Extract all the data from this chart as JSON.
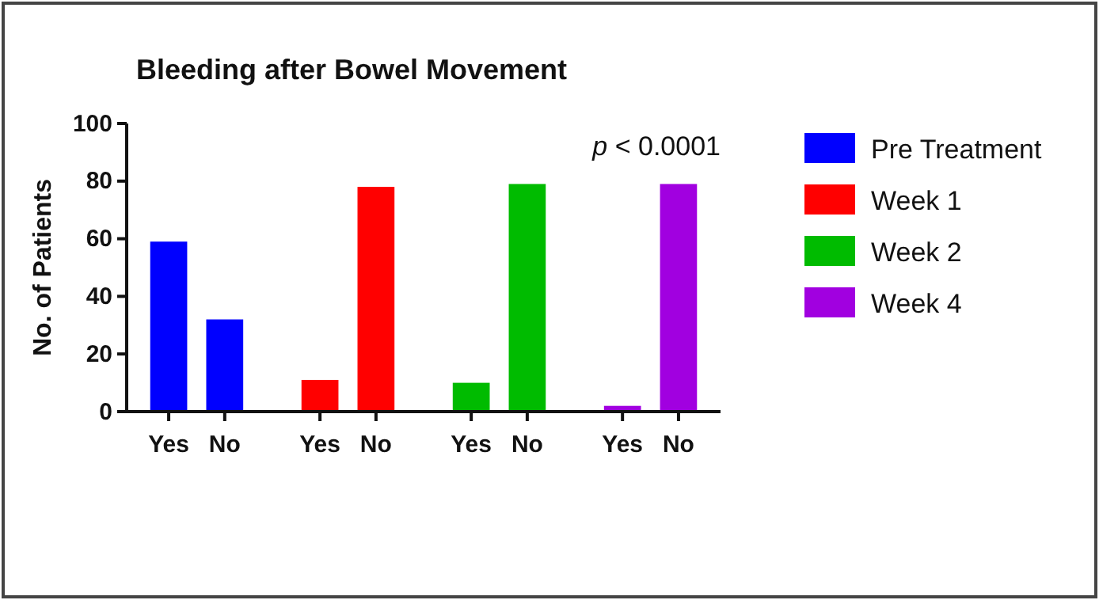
{
  "chart_data": {
    "type": "bar",
    "title": "Bleeding after Bowel Movement",
    "ylabel": "No. of Patients",
    "categories": [
      "Yes",
      "No",
      "Yes",
      "No",
      "Yes",
      "No",
      "Yes",
      "No"
    ],
    "series": [
      {
        "name": "Pre Treatment",
        "color": "#0000ff",
        "values": [
          59,
          32,
          null,
          null,
          null,
          null,
          null,
          null
        ]
      },
      {
        "name": "Week 1",
        "color": "#ff0000",
        "values": [
          null,
          null,
          11,
          78,
          null,
          null,
          null,
          null
        ]
      },
      {
        "name": "Week 2",
        "color": "#00bb00",
        "values": [
          null,
          null,
          null,
          null,
          10,
          79,
          null,
          null
        ]
      },
      {
        "name": "Week 4",
        "color": "#a100e0",
        "values": [
          null,
          null,
          null,
          null,
          null,
          null,
          2,
          79
        ]
      }
    ],
    "ylim": [
      0,
      100
    ],
    "yticks": [
      0,
      20,
      40,
      60,
      80,
      100
    ],
    "annotations": [
      "p < 0.0001"
    ],
    "legend": "right",
    "grid": false
  }
}
